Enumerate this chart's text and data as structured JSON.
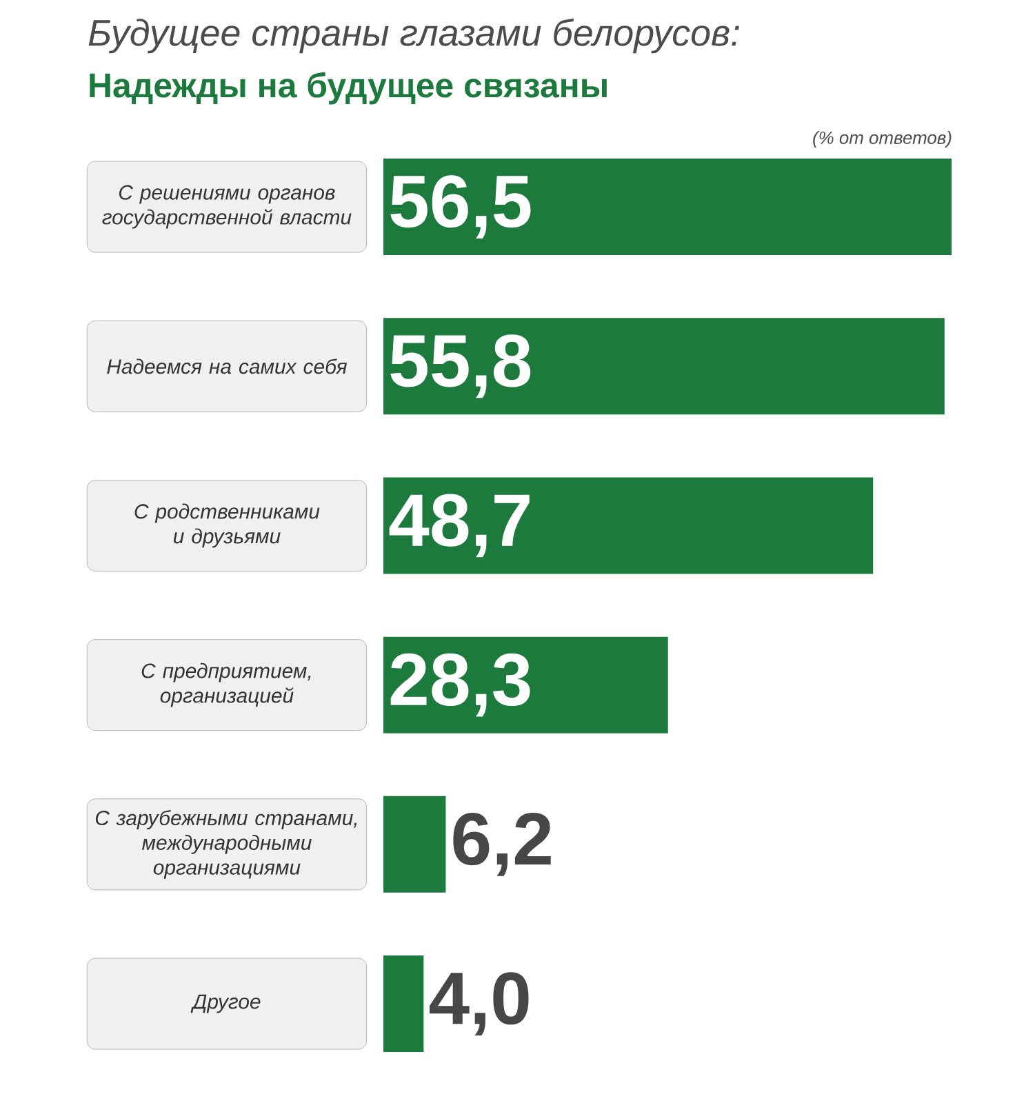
{
  "chart_data": {
    "type": "bar",
    "orientation": "horizontal",
    "title": "Будущее страны глазами белорусов:",
    "subtitle": "Надежды на будущее связаны",
    "annotations": [
      "(% от ответов)"
    ],
    "categories": [
      "С решениями органов государственной власти",
      "Надеемся на самих себя",
      "С родственниками и друзьями",
      "С предприятием, организацией",
      "С зарубежными странами, международными организациями",
      "Другое"
    ],
    "values": [
      56.5,
      55.8,
      48.7,
      28.3,
      6.2,
      4.0
    ],
    "value_labels": [
      "56,5",
      "55,8",
      "48,7",
      "28,3",
      "6,2",
      "4,0"
    ],
    "color": "#1b7a3c",
    "tick_labels": "y"
  }
}
